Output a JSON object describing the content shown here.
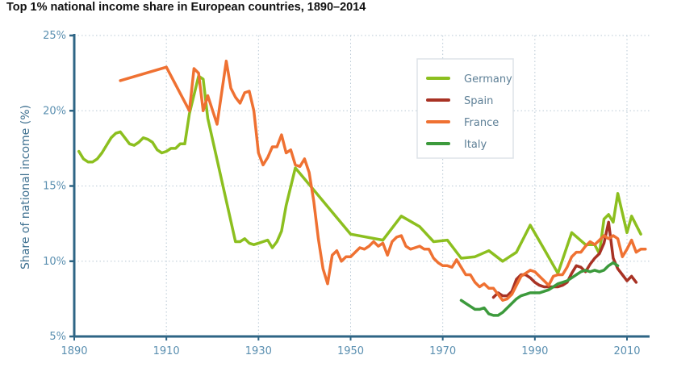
{
  "chart_data": {
    "type": "line",
    "title": "Top 1% national income share in European countries, 1890–2014",
    "xlabel": "",
    "ylabel": "Share of national income (%)",
    "xlim": [
      1890,
      2014
    ],
    "ylim": [
      5,
      25
    ],
    "x_ticks": [
      "1890",
      "1910",
      "1930",
      "1950",
      "1970",
      "1990",
      "2010"
    ],
    "y_ticks": [
      "5%",
      "10%",
      "15%",
      "20%",
      "25%"
    ],
    "grid": true,
    "legend_position": "top-right",
    "series": [
      {
        "name": "Germany",
        "color": "#8cbf1f",
        "points": [
          [
            1891,
            17.3
          ],
          [
            1892,
            16.8
          ],
          [
            1893,
            16.6
          ],
          [
            1894,
            16.6
          ],
          [
            1895,
            16.8
          ],
          [
            1896,
            17.2
          ],
          [
            1897,
            17.7
          ],
          [
            1898,
            18.2
          ],
          [
            1899,
            18.5
          ],
          [
            1900,
            18.6
          ],
          [
            1901,
            18.2
          ],
          [
            1902,
            17.8
          ],
          [
            1903,
            17.7
          ],
          [
            1904,
            17.9
          ],
          [
            1905,
            18.2
          ],
          [
            1906,
            18.1
          ],
          [
            1907,
            17.9
          ],
          [
            1908,
            17.4
          ],
          [
            1909,
            17.2
          ],
          [
            1910,
            17.3
          ],
          [
            1911,
            17.5
          ],
          [
            1912,
            17.5
          ],
          [
            1913,
            17.8
          ],
          [
            1914,
            17.8
          ],
          [
            1915,
            19.8
          ],
          [
            1917,
            22.3
          ],
          [
            1918,
            22.1
          ],
          [
            1919,
            19.5
          ],
          [
            1925,
            11.3
          ],
          [
            1926,
            11.3
          ],
          [
            1927,
            11.5
          ],
          [
            1928,
            11.2
          ],
          [
            1929,
            11.1
          ],
          [
            1930,
            11.2
          ],
          [
            1931,
            11.3
          ],
          [
            1932,
            11.4
          ],
          [
            1933,
            10.9
          ],
          [
            1934,
            11.3
          ],
          [
            1935,
            12.0
          ],
          [
            1936,
            13.7
          ],
          [
            1938,
            16.2
          ],
          [
            1950,
            11.8
          ],
          [
            1957,
            11.4
          ],
          [
            1961,
            13.0
          ],
          [
            1965,
            12.3
          ],
          [
            1968,
            11.3
          ],
          [
            1971,
            11.4
          ],
          [
            1974,
            10.2
          ],
          [
            1977,
            10.3
          ],
          [
            1980,
            10.7
          ],
          [
            1983,
            10.0
          ],
          [
            1986,
            10.6
          ],
          [
            1989,
            12.4
          ],
          [
            1992,
            10.8
          ],
          [
            1995,
            9.2
          ],
          [
            1998,
            11.9
          ],
          [
            2001,
            11.1
          ],
          [
            2003,
            11.1
          ],
          [
            2004,
            10.5
          ],
          [
            2005,
            12.8
          ],
          [
            2006,
            13.1
          ],
          [
            2007,
            12.6
          ],
          [
            2008,
            14.5
          ],
          [
            2010,
            11.9
          ],
          [
            2011,
            13.0
          ],
          [
            2013,
            11.8
          ]
        ]
      },
      {
        "name": "Spain",
        "color": "#a83224",
        "points": [
          [
            1981,
            7.6
          ],
          [
            1982,
            7.9
          ],
          [
            1983,
            7.7
          ],
          [
            1984,
            7.7
          ],
          [
            1985,
            8.0
          ],
          [
            1986,
            8.8
          ],
          [
            1987,
            9.1
          ],
          [
            1988,
            9.1
          ],
          [
            1989,
            8.9
          ],
          [
            1990,
            8.6
          ],
          [
            1991,
            8.4
          ],
          [
            1992,
            8.3
          ],
          [
            1993,
            8.3
          ],
          [
            1994,
            8.3
          ],
          [
            1995,
            8.3
          ],
          [
            1996,
            8.4
          ],
          [
            1997,
            8.6
          ],
          [
            1998,
            9.2
          ],
          [
            1999,
            9.7
          ],
          [
            2000,
            9.6
          ],
          [
            2001,
            9.3
          ],
          [
            2002,
            9.8
          ],
          [
            2003,
            10.2
          ],
          [
            2004,
            10.5
          ],
          [
            2005,
            11.2
          ],
          [
            2006,
            12.6
          ],
          [
            2007,
            10.2
          ],
          [
            2008,
            9.5
          ],
          [
            2009,
            9.1
          ],
          [
            2010,
            8.7
          ],
          [
            2011,
            9.0
          ],
          [
            2012,
            8.6
          ]
        ]
      },
      {
        "name": "France",
        "color": "#ef7132",
        "points": [
          [
            1900,
            22.0
          ],
          [
            1910,
            22.9
          ],
          [
            1915,
            20.0
          ],
          [
            1916,
            22.8
          ],
          [
            1917,
            22.5
          ],
          [
            1918,
            20.0
          ],
          [
            1919,
            21.0
          ],
          [
            1921,
            19.1
          ],
          [
            1923,
            23.3
          ],
          [
            1924,
            21.5
          ],
          [
            1925,
            20.9
          ],
          [
            1926,
            20.5
          ],
          [
            1927,
            21.2
          ],
          [
            1928,
            21.3
          ],
          [
            1929,
            20.0
          ],
          [
            1930,
            17.2
          ],
          [
            1931,
            16.4
          ],
          [
            1932,
            16.9
          ],
          [
            1933,
            17.6
          ],
          [
            1934,
            17.6
          ],
          [
            1935,
            18.4
          ],
          [
            1936,
            17.2
          ],
          [
            1937,
            17.4
          ],
          [
            1938,
            16.4
          ],
          [
            1939,
            16.3
          ],
          [
            1940,
            16.8
          ],
          [
            1941,
            15.9
          ],
          [
            1942,
            14.0
          ],
          [
            1943,
            11.5
          ],
          [
            1944,
            9.5
          ],
          [
            1945,
            8.5
          ],
          [
            1946,
            10.4
          ],
          [
            1947,
            10.7
          ],
          [
            1948,
            10.0
          ],
          [
            1949,
            10.3
          ],
          [
            1950,
            10.3
          ],
          [
            1951,
            10.6
          ],
          [
            1952,
            10.9
          ],
          [
            1953,
            10.8
          ],
          [
            1954,
            11.0
          ],
          [
            1955,
            11.3
          ],
          [
            1956,
            11.0
          ],
          [
            1957,
            11.2
          ],
          [
            1958,
            10.4
          ],
          [
            1959,
            11.3
          ],
          [
            1960,
            11.6
          ],
          [
            1961,
            11.7
          ],
          [
            1962,
            11.0
          ],
          [
            1963,
            10.8
          ],
          [
            1964,
            10.9
          ],
          [
            1965,
            11.0
          ],
          [
            1966,
            10.8
          ],
          [
            1967,
            10.8
          ],
          [
            1968,
            10.2
          ],
          [
            1969,
            9.9
          ],
          [
            1970,
            9.7
          ],
          [
            1971,
            9.7
          ],
          [
            1972,
            9.6
          ],
          [
            1973,
            10.1
          ],
          [
            1974,
            9.6
          ],
          [
            1975,
            9.1
          ],
          [
            1976,
            9.1
          ],
          [
            1977,
            8.6
          ],
          [
            1978,
            8.3
          ],
          [
            1979,
            8.5
          ],
          [
            1980,
            8.2
          ],
          [
            1981,
            8.2
          ],
          [
            1982,
            7.8
          ],
          [
            1983,
            7.4
          ],
          [
            1984,
            7.5
          ],
          [
            1985,
            7.8
          ],
          [
            1986,
            8.4
          ],
          [
            1987,
            9.0
          ],
          [
            1988,
            9.2
          ],
          [
            1989,
            9.4
          ],
          [
            1990,
            9.3
          ],
          [
            1991,
            9.0
          ],
          [
            1992,
            8.7
          ],
          [
            1993,
            8.4
          ],
          [
            1994,
            9.0
          ],
          [
            1995,
            9.1
          ],
          [
            1996,
            9.1
          ],
          [
            1997,
            9.6
          ],
          [
            1998,
            10.3
          ],
          [
            1999,
            10.6
          ],
          [
            2000,
            10.6
          ],
          [
            2001,
            11.0
          ],
          [
            2002,
            11.3
          ],
          [
            2003,
            11.1
          ],
          [
            2004,
            11.4
          ],
          [
            2005,
            11.7
          ],
          [
            2006,
            11.5
          ],
          [
            2007,
            11.7
          ],
          [
            2008,
            11.5
          ],
          [
            2009,
            10.3
          ],
          [
            2010,
            10.8
          ],
          [
            2011,
            11.4
          ],
          [
            2012,
            10.6
          ],
          [
            2013,
            10.8
          ],
          [
            2014,
            10.8
          ]
        ]
      },
      {
        "name": "Italy",
        "color": "#3c9a3c",
        "points": [
          [
            1974,
            7.4
          ],
          [
            1975,
            7.2
          ],
          [
            1976,
            7.0
          ],
          [
            1977,
            6.8
          ],
          [
            1978,
            6.8
          ],
          [
            1979,
            6.9
          ],
          [
            1980,
            6.5
          ],
          [
            1981,
            6.4
          ],
          [
            1982,
            6.4
          ],
          [
            1983,
            6.6
          ],
          [
            1984,
            6.9
          ],
          [
            1985,
            7.2
          ],
          [
            1986,
            7.5
          ],
          [
            1987,
            7.7
          ],
          [
            1988,
            7.8
          ],
          [
            1989,
            7.9
          ],
          [
            1990,
            7.9
          ],
          [
            1991,
            7.9
          ],
          [
            1992,
            8.0
          ],
          [
            1993,
            8.1
          ],
          [
            1994,
            8.3
          ],
          [
            1995,
            8.5
          ],
          [
            1996,
            8.6
          ],
          [
            1997,
            8.7
          ],
          [
            1998,
            8.9
          ],
          [
            1999,
            9.1
          ],
          [
            2000,
            9.3
          ],
          [
            2001,
            9.4
          ],
          [
            2002,
            9.3
          ],
          [
            2003,
            9.4
          ],
          [
            2004,
            9.3
          ],
          [
            2005,
            9.4
          ],
          [
            2006,
            9.7
          ],
          [
            2007,
            9.9
          ],
          [
            2008,
            9.7
          ]
        ]
      }
    ]
  },
  "colors": {
    "axis": "#2e6585",
    "tick_text": "#5a8fb0",
    "grid": "#b8c8d4"
  }
}
